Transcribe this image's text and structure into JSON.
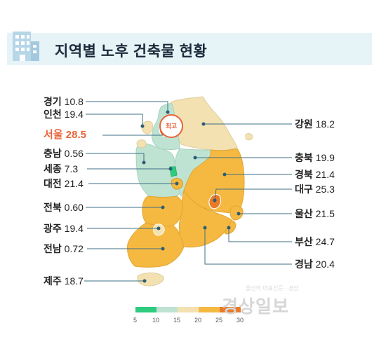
{
  "title": "지역별 노후 건축물 현황",
  "badge": "최고",
  "colors": {
    "lt10": "#2ecc7e",
    "10_15": "#bfe3d2",
    "15_20": "#f3e1b1",
    "20_25": "#f5b942",
    "25_30": "#e87a28",
    "highlight": "#e8643a"
  },
  "regions": [
    {
      "name": "경기",
      "value": "10.8"
    },
    {
      "name": "인천",
      "value": "19.4"
    },
    {
      "name": "서울",
      "value": "28.5",
      "highlight": true
    },
    {
      "name": "충남",
      "value": "0.56"
    },
    {
      "name": "세종",
      "value": "7.3"
    },
    {
      "name": "대전",
      "value": "21.4"
    },
    {
      "name": "전북",
      "value": "0.60"
    },
    {
      "name": "광주",
      "value": "19.4"
    },
    {
      "name": "전남",
      "value": "0.72"
    },
    {
      "name": "제주",
      "value": "18.7"
    },
    {
      "name": "강원",
      "value": "18.2"
    },
    {
      "name": "충북",
      "value": "19.9"
    },
    {
      "name": "경북",
      "value": "21.4"
    },
    {
      "name": "대구",
      "value": "25.3"
    },
    {
      "name": "울산",
      "value": "21.5"
    },
    {
      "name": "부산",
      "value": "24.7"
    },
    {
      "name": "경남",
      "value": "20.4"
    }
  ],
  "scale": {
    "ticks": [
      "5",
      "10",
      "15",
      "20",
      "25",
      "30"
    ],
    "colors": [
      "#2ecc7e",
      "#bfe3d2",
      "#f3e1b1",
      "#f5b942",
      "#e87a28"
    ]
  },
  "watermark": {
    "name": "경상일보",
    "sub": "울산의 대표신문 · 경상"
  }
}
